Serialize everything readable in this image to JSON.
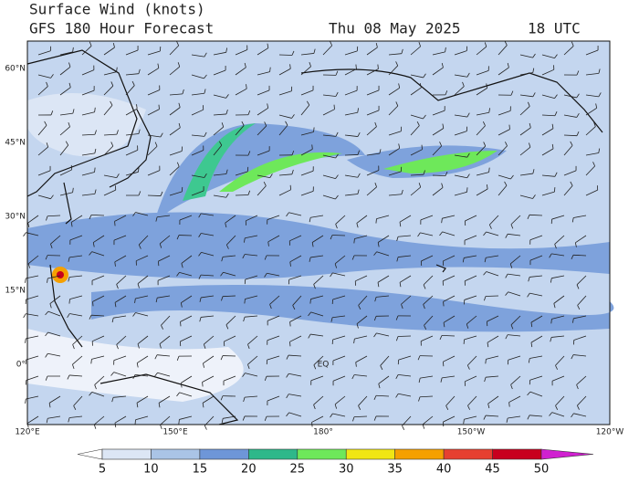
{
  "header": {
    "title": "Surface Wind (knots)",
    "subtitle": "GFS 180 Hour Forecast",
    "date": "Thu 08 May 2025",
    "time": "18 UTC"
  },
  "map": {
    "lat_labels": [
      "60°N",
      "45°N",
      "30°N",
      "15°N",
      "0°"
    ],
    "lon_labels": [
      "120°E",
      "150°E",
      "180°",
      "150°W",
      "120°W"
    ],
    "annotations": [
      "EQ"
    ]
  },
  "colorbar": {
    "ticks": [
      5,
      10,
      15,
      20,
      25,
      30,
      35,
      40,
      45,
      50
    ],
    "colors": [
      "#ffffff",
      "#dce6f5",
      "#aac4e6",
      "#6e96d8",
      "#2eb88a",
      "#6ee85a",
      "#f0e614",
      "#f5a000",
      "#e64030",
      "#c8001e",
      "#d020d0"
    ]
  }
}
